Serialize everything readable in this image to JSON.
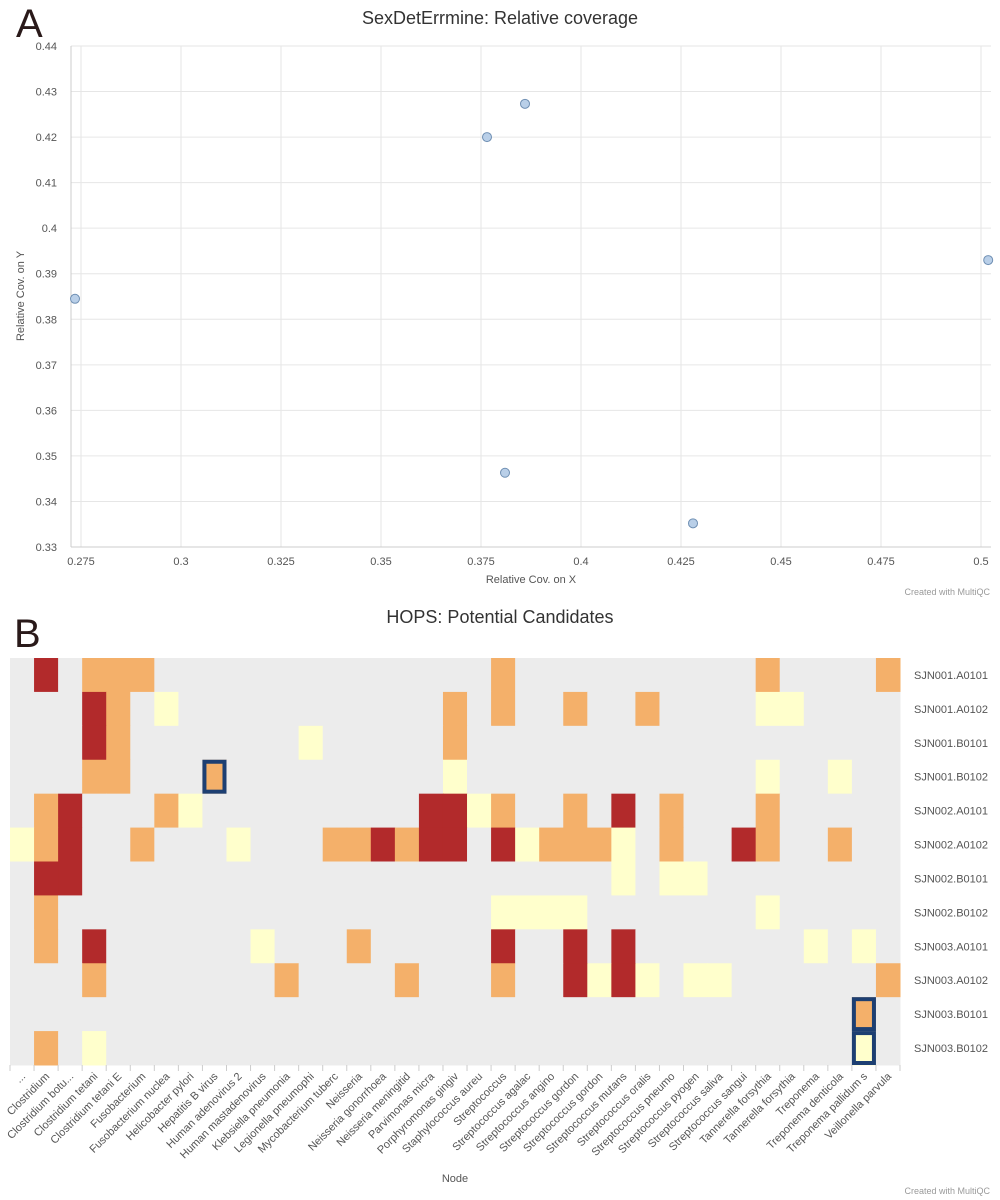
{
  "panels": {
    "a_letter": "A",
    "b_letter": "B"
  },
  "credit": "Created with MultiQC",
  "chart_data": [
    {
      "type": "scatter",
      "title": "SexDetErrmine: Relative coverage",
      "xlabel": "Relative Cov. on X",
      "ylabel": "Relative Cov. on Y",
      "xlim": [
        0.2725,
        0.5025
      ],
      "ylim": [
        0.33,
        0.44
      ],
      "xticks": [
        "0.275",
        "0.3",
        "0.325",
        "0.35",
        "0.375",
        "0.4",
        "0.425",
        "0.45",
        "0.475",
        "0.5"
      ],
      "xtick_values": [
        0.275,
        0.3,
        0.325,
        0.35,
        0.375,
        0.4,
        0.425,
        0.45,
        0.475,
        0.5
      ],
      "yticks": [
        "0.33",
        "0.34",
        "0.35",
        "0.36",
        "0.37",
        "0.38",
        "0.39",
        "0.4",
        "0.41",
        "0.42",
        "0.43",
        "0.44"
      ],
      "ytick_values": [
        0.33,
        0.34,
        0.35,
        0.36,
        0.37,
        0.38,
        0.39,
        0.4,
        0.41,
        0.42,
        0.43,
        0.44
      ],
      "grid": true,
      "point_color": "#b9cfe8",
      "point_edge": "#6f8fb3",
      "points": [
        {
          "x": 0.2735,
          "y": 0.3845
        },
        {
          "x": 0.3765,
          "y": 0.42
        },
        {
          "x": 0.386,
          "y": 0.4273
        },
        {
          "x": 0.381,
          "y": 0.3463
        },
        {
          "x": 0.428,
          "y": 0.3352
        },
        {
          "x": 0.5018,
          "y": 0.393
        }
      ]
    },
    {
      "type": "heatmap",
      "title": "HOPS: Potential Candidates",
      "xlabel": "Node",
      "grid": false,
      "colors": {
        "0": "#ececec",
        "1": "#ffffcc",
        "2": "#f4b06a",
        "3": "#b22a2b"
      },
      "highlight_color": "#1d3f72",
      "x_categories": [
        "...",
        "Clostridium",
        "Clostridium botu...",
        "Clostridium tetani",
        "Clostridium tetani E",
        "Fusobacterium",
        "Fusobacterium nuclea",
        "Helicobacter pylori",
        "Hepatitis B virus",
        "Human adenovirus 2",
        "Human mastadenovirus",
        "Klebsiella pneumonia",
        "Legionella pneumophi",
        "Mycobacterium tuberc",
        "Neisseria",
        "Neisseria gonorrhoea",
        "Neisseria meningitid",
        "Parvimonas micra",
        "Porphyromonas gingiv",
        "Staphylococcus aureu",
        "Streptococcus",
        "Streptococcus agalac",
        "Streptococcus angino",
        "Streptococcus gordon",
        "Streptococcus gordon",
        "Streptococcus mutans",
        "Streptococcus oralis",
        "Streptococcus pneumo",
        "Streptococcus pyogen",
        "Streptococcus saliva",
        "Streptococcus sangui",
        "Tannerella forsythia",
        "Tannerella forsythia",
        "Treponema",
        "Treponema denticola",
        "Treponema pallidum s",
        "Veillonella parvula"
      ],
      "y_categories": [
        "SJN001.A0101",
        "SJN001.A0102",
        "SJN001.B0101",
        "SJN001.B0102",
        "SJN002.A0101",
        "SJN002.A0102",
        "SJN002.B0101",
        "SJN002.B0102",
        "SJN003.A0101",
        "SJN003.A0102",
        "SJN003.B0101",
        "SJN003.B0102"
      ],
      "matrix": [
        [
          0,
          3,
          0,
          2,
          2,
          2,
          0,
          0,
          0,
          0,
          0,
          0,
          0,
          0,
          0,
          0,
          0,
          0,
          0,
          0,
          2,
          0,
          0,
          0,
          0,
          0,
          0,
          0,
          0,
          0,
          0,
          2,
          0,
          0,
          0,
          0,
          2
        ],
        [
          0,
          0,
          0,
          3,
          2,
          0,
          1,
          0,
          0,
          0,
          0,
          0,
          0,
          0,
          0,
          0,
          0,
          0,
          2,
          0,
          2,
          0,
          0,
          2,
          0,
          0,
          2,
          0,
          0,
          0,
          0,
          1,
          1,
          0,
          0,
          0,
          0
        ],
        [
          0,
          0,
          0,
          3,
          2,
          0,
          0,
          0,
          0,
          0,
          0,
          0,
          1,
          0,
          0,
          0,
          0,
          0,
          2,
          0,
          0,
          0,
          0,
          0,
          0,
          0,
          0,
          0,
          0,
          0,
          0,
          0,
          0,
          0,
          0,
          0,
          0
        ],
        [
          0,
          0,
          0,
          2,
          2,
          0,
          0,
          0,
          2,
          0,
          0,
          0,
          0,
          0,
          0,
          0,
          0,
          0,
          1,
          0,
          0,
          0,
          0,
          0,
          0,
          0,
          0,
          0,
          0,
          0,
          0,
          1,
          0,
          0,
          1,
          0,
          0
        ],
        [
          0,
          2,
          3,
          0,
          0,
          0,
          2,
          1,
          0,
          0,
          0,
          0,
          0,
          0,
          0,
          0,
          0,
          3,
          3,
          1,
          2,
          0,
          0,
          2,
          0,
          3,
          0,
          2,
          0,
          0,
          0,
          2,
          0,
          0,
          0,
          0,
          0
        ],
        [
          1,
          2,
          3,
          0,
          0,
          2,
          0,
          0,
          0,
          1,
          0,
          0,
          0,
          2,
          2,
          3,
          2,
          3,
          3,
          0,
          3,
          1,
          2,
          2,
          2,
          1,
          0,
          2,
          0,
          0,
          3,
          2,
          0,
          0,
          2,
          0,
          0
        ],
        [
          0,
          3,
          3,
          0,
          0,
          0,
          0,
          0,
          0,
          0,
          0,
          0,
          0,
          0,
          0,
          0,
          0,
          0,
          0,
          0,
          0,
          0,
          0,
          0,
          0,
          1,
          0,
          1,
          1,
          0,
          0,
          0,
          0,
          0,
          0,
          0,
          0
        ],
        [
          0,
          2,
          0,
          0,
          0,
          0,
          0,
          0,
          0,
          0,
          0,
          0,
          0,
          0,
          0,
          0,
          0,
          0,
          0,
          0,
          1,
          1,
          1,
          1,
          0,
          0,
          0,
          0,
          0,
          0,
          0,
          1,
          0,
          0,
          0,
          0,
          0
        ],
        [
          0,
          2,
          0,
          3,
          0,
          0,
          0,
          0,
          0,
          0,
          1,
          0,
          0,
          0,
          2,
          0,
          0,
          0,
          0,
          0,
          3,
          0,
          0,
          3,
          0,
          3,
          0,
          0,
          0,
          0,
          0,
          0,
          0,
          1,
          0,
          1,
          0
        ],
        [
          0,
          0,
          0,
          2,
          0,
          0,
          0,
          0,
          0,
          0,
          0,
          2,
          0,
          0,
          0,
          0,
          2,
          0,
          0,
          0,
          2,
          0,
          0,
          3,
          1,
          3,
          1,
          0,
          1,
          1,
          0,
          0,
          0,
          0,
          0,
          0,
          2
        ],
        [
          0,
          0,
          0,
          0,
          0,
          0,
          0,
          0,
          0,
          0,
          0,
          0,
          0,
          0,
          0,
          0,
          0,
          0,
          0,
          0,
          0,
          0,
          0,
          0,
          0,
          0,
          0,
          0,
          0,
          0,
          0,
          0,
          0,
          0,
          0,
          2,
          0
        ],
        [
          0,
          2,
          0,
          1,
          0,
          0,
          0,
          0,
          0,
          0,
          0,
          0,
          0,
          0,
          0,
          0,
          0,
          0,
          0,
          0,
          0,
          0,
          0,
          0,
          0,
          0,
          0,
          0,
          0,
          0,
          0,
          0,
          0,
          0,
          0,
          1,
          0
        ]
      ],
      "highlighted_cells": [
        [
          3,
          8
        ],
        [
          10,
          35
        ],
        [
          11,
          35
        ]
      ]
    }
  ]
}
